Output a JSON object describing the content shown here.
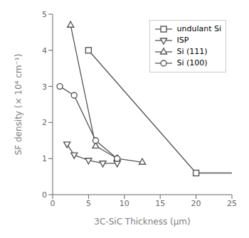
{
  "chart_data": {
    "type": "line",
    "xlabel": "3C-SiC Thickness (μm)",
    "ylabel": "SF density (× 10⁴ cm⁻¹)",
    "xlim": [
      0,
      25
    ],
    "ylim": [
      0,
      5
    ],
    "xticks": [
      0,
      5,
      10,
      15,
      20,
      25
    ],
    "yticks": [
      0,
      1,
      2,
      3,
      4,
      5
    ],
    "color": "#555555",
    "grid": false,
    "legend": "upper right",
    "series": [
      {
        "name": "undulant Si",
        "marker": "square",
        "x": [
          5,
          20
        ],
        "values": [
          4.0,
          0.6
        ],
        "extension": {
          "x": [
            20,
            25
          ],
          "values": [
            0.6,
            0.6
          ]
        }
      },
      {
        "name": "ISP",
        "marker": "triangle-down",
        "x": [
          2,
          3,
          5,
          7,
          9
        ],
        "values": [
          1.4,
          1.1,
          0.95,
          0.87,
          0.87
        ]
      },
      {
        "name": "Si (111)",
        "marker": "triangle",
        "x": [
          2.5,
          6,
          9,
          12.5
        ],
        "values": [
          4.7,
          1.35,
          1.0,
          0.9
        ]
      },
      {
        "name": "Si (100)",
        "marker": "circle",
        "x": [
          1,
          3,
          6,
          9
        ],
        "values": [
          3.0,
          2.75,
          1.5,
          1.0
        ]
      }
    ]
  }
}
